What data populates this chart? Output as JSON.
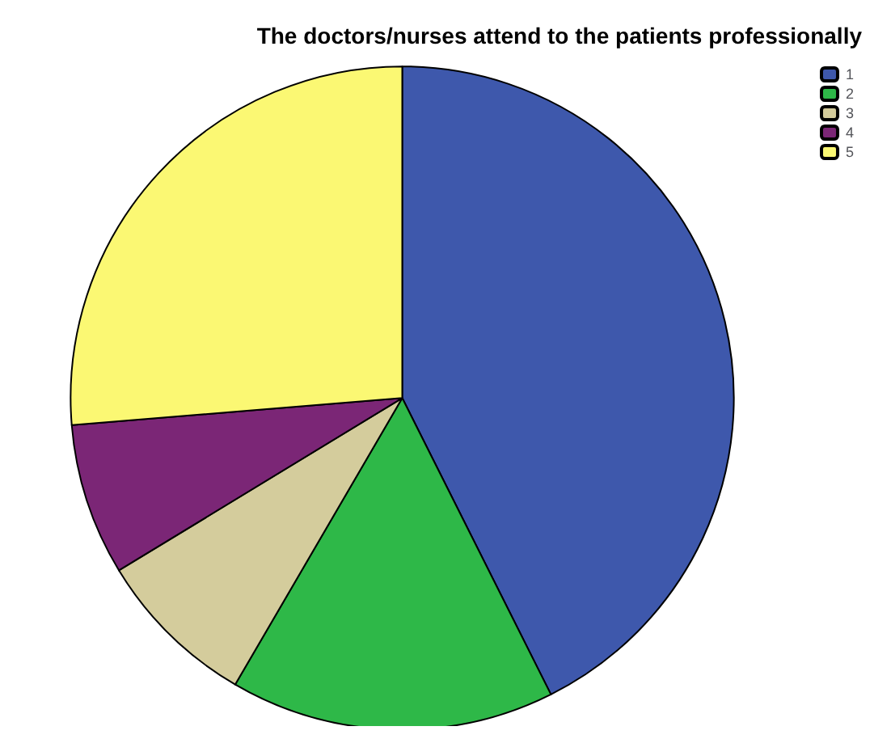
{
  "chart_data": {
    "type": "pie",
    "title": "The doctors/nurses attend to the patients professionally",
    "categories": [
      "1",
      "2",
      "3",
      "4",
      "5"
    ],
    "values": [
      42.6,
      15.8,
      7.9,
      7.4,
      26.3
    ],
    "colors": [
      "#3e58ac",
      "#2eb848",
      "#d4cc9c",
      "#7b2676",
      "#fbf873"
    ],
    "legend": "top right"
  }
}
